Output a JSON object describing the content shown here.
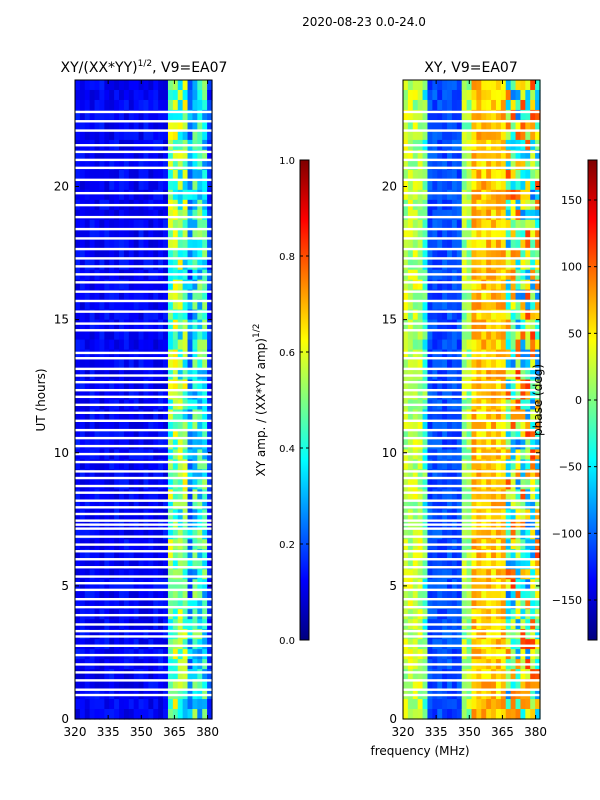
{
  "figure": {
    "suptitle": "2020-08-23 0.0-24.0",
    "xlabel": "frequency (MHz)"
  },
  "chart_data": [
    {
      "type": "heatmap",
      "title": "XY/(XX*YY)",
      "title_superscript": "1/2",
      "title_suffix": ", V9=EA07",
      "xlabel": "",
      "ylabel": "UT (hours)",
      "xlim": [
        320,
        382
      ],
      "ylim": [
        0,
        24
      ],
      "xticks": [
        320,
        335,
        350,
        365,
        380
      ],
      "yticks": [
        0,
        5,
        10,
        15,
        20
      ],
      "colormap": "jet",
      "clim": [
        0.0,
        1.0
      ],
      "colorbar": {
        "label": "XY amp. / (XX*YY amp)",
        "label_superscript": "1/2",
        "ticks": [
          0.0,
          0.2,
          0.4,
          0.6,
          0.8,
          1.0
        ],
        "tick_labels": [
          "0.0",
          "0.2",
          "0.4",
          "0.6",
          "0.8",
          "1.0"
        ]
      },
      "description": "Mostly low normalized amplitude (~0.1) below ~363 MHz; bands of elevated amplitude (0.3-0.7) between ~363 and ~380 MHz across all UT."
    },
    {
      "type": "heatmap",
      "title": "XY, V9=EA07",
      "xlabel": "",
      "ylabel": "",
      "xlim": [
        320,
        382
      ],
      "ylim": [
        0,
        24
      ],
      "xticks": [
        320,
        335,
        350,
        365,
        380
      ],
      "yticks": [
        0,
        5,
        10,
        15,
        20
      ],
      "colormap": "jet",
      "clim": [
        -180,
        180
      ],
      "colorbar": {
        "label": "phase (deg)",
        "ticks": [
          -150,
          -100,
          -50,
          0,
          50,
          100,
          150
        ],
        "tick_labels": [
          "−150",
          "−100",
          "−50",
          "0",
          "50",
          "100",
          "150"
        ]
      },
      "description": "Phase mostly near 0 to +60 deg at low frequencies, a band near -120 deg around 330-345 MHz, positive phases 350-365 MHz, mixed values above 365 MHz."
    }
  ],
  "gap_rows_hours": [
    0.9,
    1.1,
    1.45,
    1.75,
    2.05,
    2.4,
    2.75,
    3.1,
    3.3,
    3.55,
    3.9,
    4.2,
    4.5,
    4.85,
    5.1,
    5.35,
    5.7,
    6.0,
    6.3,
    6.55,
    6.85,
    7.15,
    7.3,
    7.45,
    7.7,
    7.95,
    8.2,
    8.5,
    8.75,
    9.05,
    9.3,
    9.65,
    9.95,
    10.25,
    10.55,
    10.85,
    11.2,
    11.5,
    11.8,
    12.1,
    12.35,
    12.65,
    12.9,
    13.15,
    13.55,
    13.75,
    14.6,
    14.85,
    15.3,
    15.7,
    16.05,
    16.4,
    16.7,
    17.0,
    17.3,
    17.65,
    18.05,
    18.4,
    18.85,
    19.3,
    19.75,
    20.25,
    20.7,
    21.0,
    21.3,
    21.55,
    22.1,
    22.45,
    22.8
  ]
}
